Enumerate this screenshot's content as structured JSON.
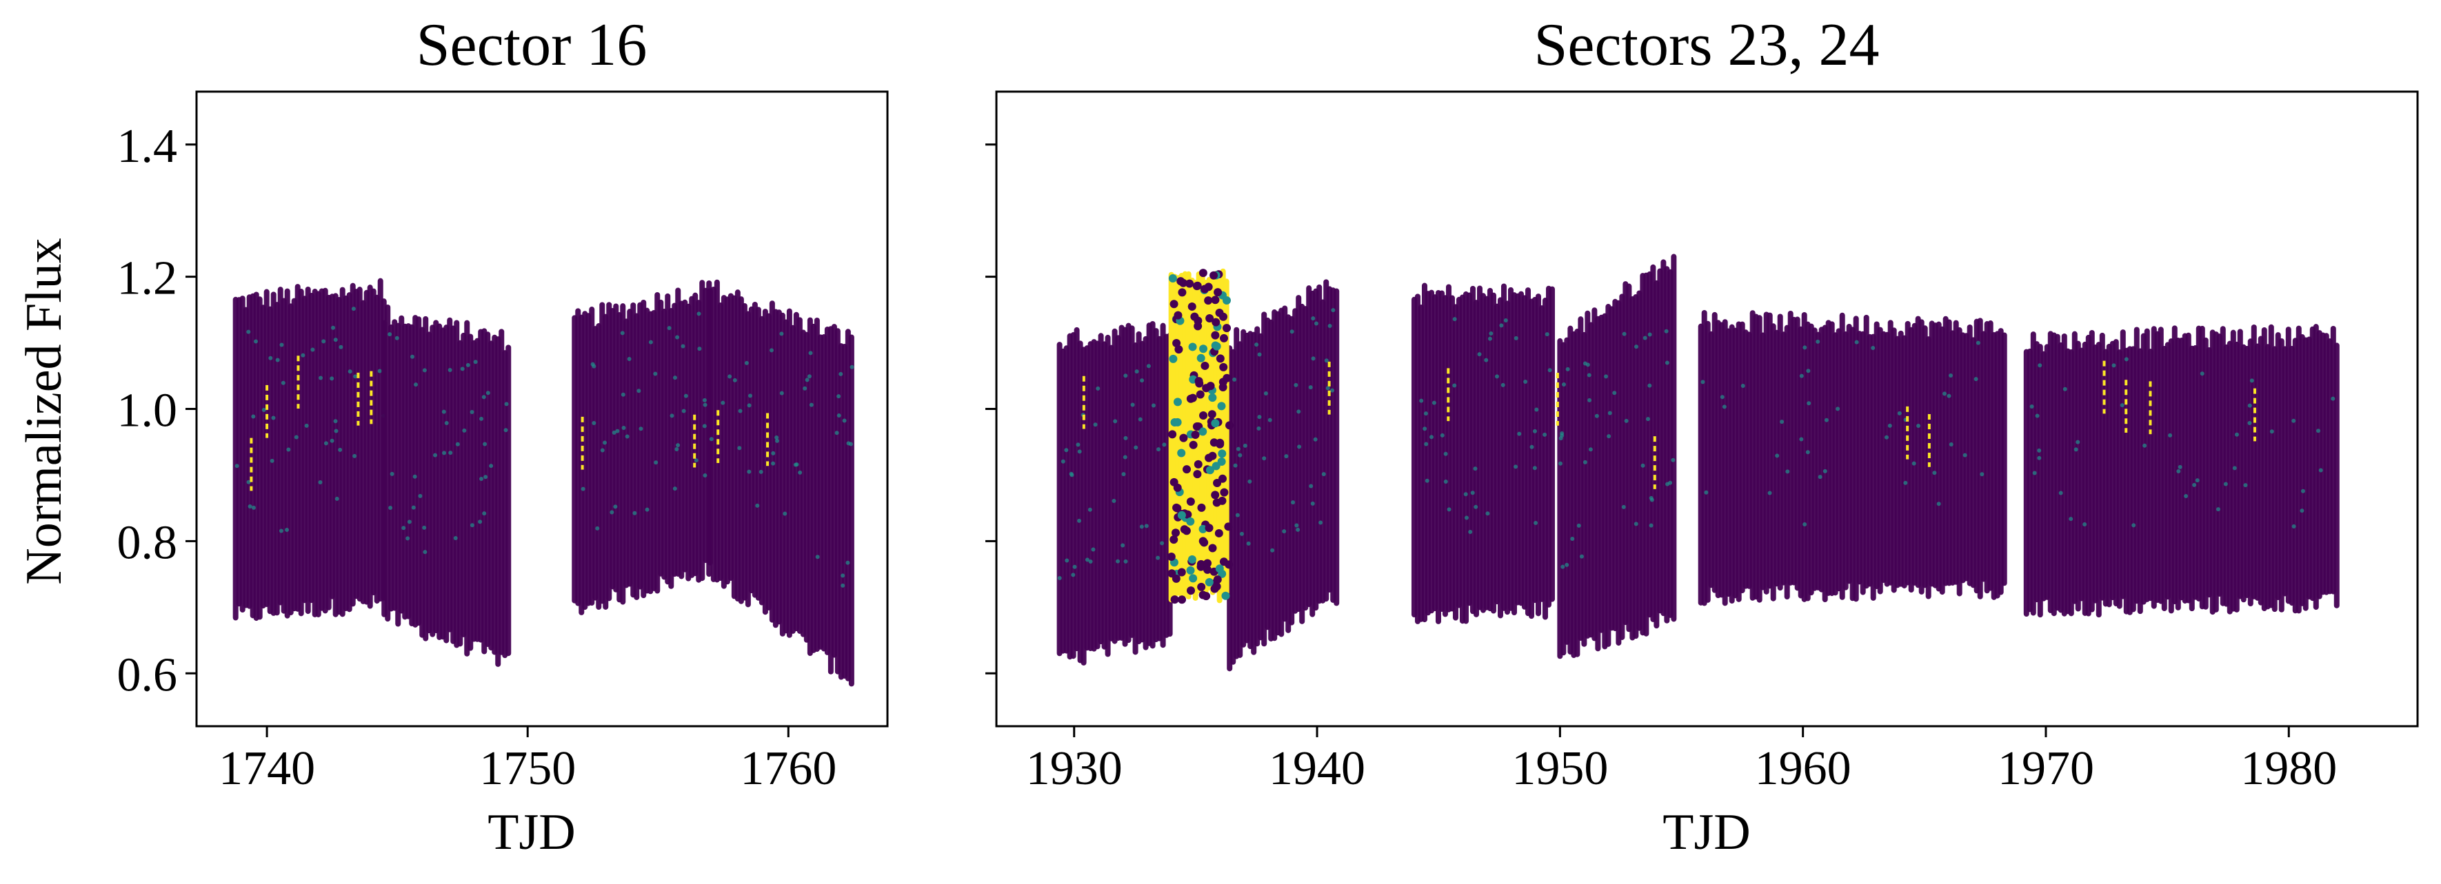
{
  "figure": {
    "shared_ylabel": "Normalized Flux"
  },
  "chart_data": [
    {
      "type": "scatter",
      "title": "Sector 16",
      "xlabel": "TJD",
      "ylabel": "Normalized Flux",
      "xlim": [
        1737.3,
        1763.8
      ],
      "ylim": [
        0.52,
        1.48
      ],
      "xticks": [
        1740,
        1750,
        1760
      ],
      "yticks": [
        0.6,
        0.8,
        1.0,
        1.2,
        1.4
      ],
      "colormap": "viridis",
      "color_dark": "#440154",
      "color_mid": "#21918c",
      "color_bright": "#fde725",
      "segments": [
        {
          "x_start": 1738.8,
          "x_end": 1744.5,
          "upper_start": 1.16,
          "upper_end": 1.18,
          "lower_start": 0.69,
          "lower_end": 0.71
        },
        {
          "x_start": 1744.5,
          "x_end": 1749.3,
          "upper_start": 1.14,
          "upper_end": 1.1,
          "lower_start": 0.69,
          "lower_end": 0.62
        },
        {
          "x_start": 1751.8,
          "x_end": 1757.0,
          "upper_start": 1.13,
          "upper_end": 1.18,
          "lower_start": 0.7,
          "lower_end": 0.76
        },
        {
          "x_start": 1757.0,
          "x_end": 1762.5,
          "upper_start": 1.18,
          "upper_end": 1.1,
          "lower_start": 0.76,
          "lower_end": 0.59
        }
      ],
      "highlight_x": [
        1739.4,
        1740.0,
        1741.2,
        1743.5,
        1744.0,
        1752.1,
        1756.4,
        1757.3,
        1759.2
      ]
    },
    {
      "type": "scatter",
      "title": "Sectors 23, 24",
      "xlabel": "TJD",
      "ylabel": "",
      "xlim": [
        1926.8,
        1985.3
      ],
      "ylim": [
        0.52,
        1.48
      ],
      "xticks": [
        1930,
        1940,
        1950,
        1960,
        1970,
        1980
      ],
      "yticks": [
        0.6,
        0.8,
        1.0,
        1.2,
        1.4
      ],
      "colormap": "viridis",
      "color_dark": "#440154",
      "color_mid": "#21918c",
      "color_bright": "#fde725",
      "segments": [
        {
          "x_start": 1929.4,
          "x_end": 1934.0,
          "upper_start": 1.1,
          "upper_end": 1.12,
          "lower_start": 0.62,
          "lower_end": 0.66
        },
        {
          "x_start": 1936.4,
          "x_end": 1940.8,
          "upper_start": 1.1,
          "upper_end": 1.19,
          "lower_start": 0.62,
          "lower_end": 0.72
        },
        {
          "x_start": 1944.0,
          "x_end": 1949.8,
          "upper_start": 1.17,
          "upper_end": 1.17,
          "lower_start": 0.69,
          "lower_end": 0.7
        },
        {
          "x_start": 1950.0,
          "x_end": 1954.8,
          "upper_start": 1.1,
          "upper_end": 1.23,
          "lower_start": 0.63,
          "lower_end": 0.69
        },
        {
          "x_start": 1955.8,
          "x_end": 1968.4,
          "upper_start": 1.13,
          "upper_end": 1.12,
          "lower_start": 0.72,
          "lower_end": 0.73
        },
        {
          "x_start": 1969.2,
          "x_end": 1982.0,
          "upper_start": 1.1,
          "upper_end": 1.11,
          "lower_start": 0.7,
          "lower_end": 0.71
        }
      ],
      "noisy_band": {
        "x_start": 1934.0,
        "x_end": 1936.4,
        "upper": 1.21,
        "lower": 0.71
      },
      "highlight_x": [
        1930.4,
        1940.5,
        1945.4,
        1949.9,
        1953.9,
        1964.3,
        1965.2,
        1972.4,
        1973.3,
        1974.3,
        1978.6
      ]
    }
  ]
}
